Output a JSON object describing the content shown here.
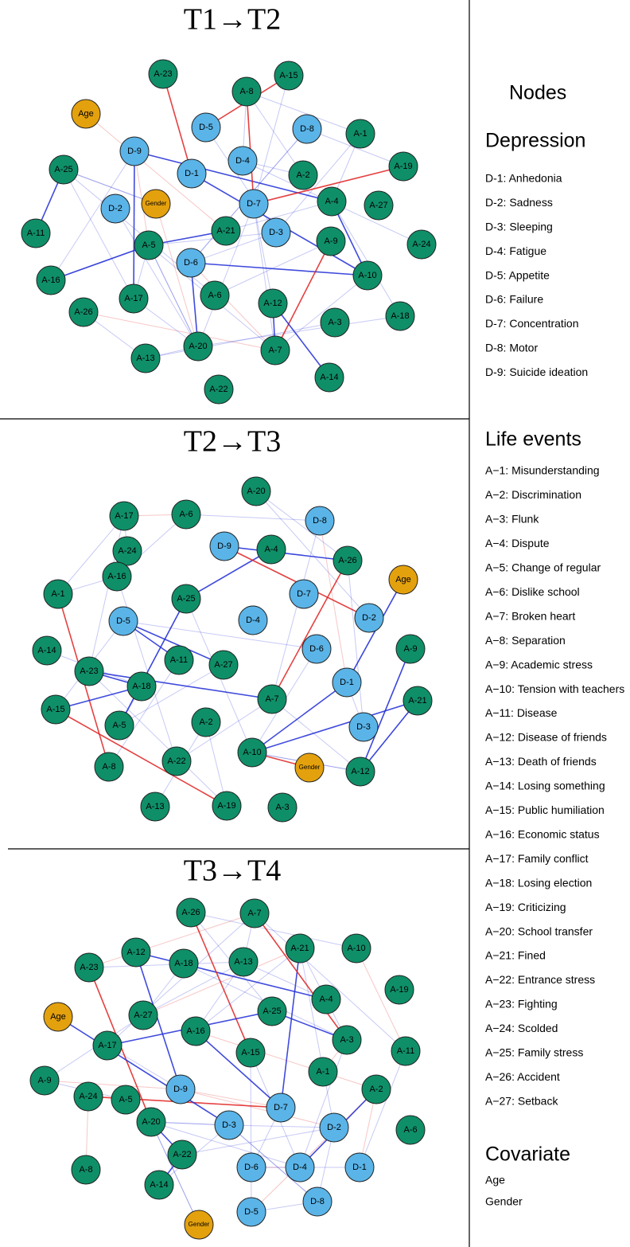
{
  "panels": [
    {
      "title": "T1→T2",
      "nodes": [
        "A-23",
        "Age",
        "A-8",
        "A-15",
        "D-5",
        "D-8",
        "A-1",
        "D-9",
        "D-4",
        "D-1",
        "A-2",
        "A-19",
        "A-25",
        "D-2",
        "Gender",
        "D-7",
        "A-4",
        "A-27",
        "A-21",
        "D-3",
        "A-11",
        "A-5",
        "A-9",
        "A-24",
        "D-6",
        "A-16",
        "A-10",
        "A-17",
        "A-6",
        "A-12",
        "A-26",
        "A-3",
        "A-18",
        "A-20",
        "A-13",
        "A-7",
        "A-14",
        "A-22"
      ]
    },
    {
      "title": "T2→T3",
      "nodes": [
        "A-20",
        "A-17",
        "A-6",
        "D-8",
        "D-9",
        "A-4",
        "A-24",
        "A-26",
        "Age",
        "A-16",
        "D-7",
        "A-1",
        "A-25",
        "D-4",
        "D-5",
        "D-2",
        "A-14",
        "D-6",
        "A-9",
        "A-11",
        "A-27",
        "A-23",
        "D-1",
        "A-18",
        "A-7",
        "A-21",
        "A-15",
        "A-5",
        "A-2",
        "D-3",
        "A-10",
        "Gender",
        "A-12",
        "A-22",
        "A-8",
        "A-19",
        "A-13",
        "A-3"
      ]
    },
    {
      "title": "T3→T4",
      "nodes": [
        "A-26",
        "A-7",
        "A-21",
        "A-10",
        "A-12",
        "A-18",
        "A-13",
        "A-23",
        "A-19",
        "A-4",
        "A-27",
        "A-25",
        "Age",
        "A-16",
        "A-3",
        "A-11",
        "A-17",
        "A-15",
        "A-1",
        "A-9",
        "A-2",
        "A-24",
        "A-5",
        "D-9",
        "D-7",
        "A-20",
        "A-6",
        "D-3",
        "D-2",
        "A-22",
        "D-6",
        "D-4",
        "D-1",
        "A-8",
        "A-14",
        "D-8",
        "Gender",
        "D-5"
      ]
    }
  ],
  "legend": {
    "title": "Nodes",
    "groups": [
      {
        "title": "Depression",
        "items": [
          "D-1: Anhedonia",
          "D-2: Sadness",
          "D-3: Sleeping",
          "D-4: Fatigue",
          "D-5: Appetite",
          "D-6: Failure",
          "D-7: Concentration",
          "D-8: Motor",
          "D-9: Suicide ideation"
        ]
      },
      {
        "title": "Life events",
        "items": [
          "A−1: Misunderstanding",
          "A−2: Discrimination",
          "A−3: Flunk",
          "A−4: Dispute",
          "A−5: Change of regular",
          "A−6: Dislike school",
          "A−7: Broken heart",
          "A−8: Separation",
          "A−9: Academic stress",
          "A−10: Tension with teachers",
          "A−11: Disease",
          "A−12: Disease of friends",
          "A−13: Death of friends",
          "A−14: Losing something",
          "A−15: Public humiliation",
          "A−16: Economic status",
          "A−17: Family conflict",
          "A−18: Losing election",
          "A−19: Criticizing",
          "A−20: School transfer",
          "A−21: Fined",
          "A−22: Entrance stress",
          "A−23: Fighting",
          "A−24: Scolded",
          "A−25: Family stress",
          "A−26: Accident",
          "A−27: Setback"
        ]
      },
      {
        "title": "Covariate",
        "items": [
          "Age",
          "Gender"
        ]
      }
    ]
  }
}
